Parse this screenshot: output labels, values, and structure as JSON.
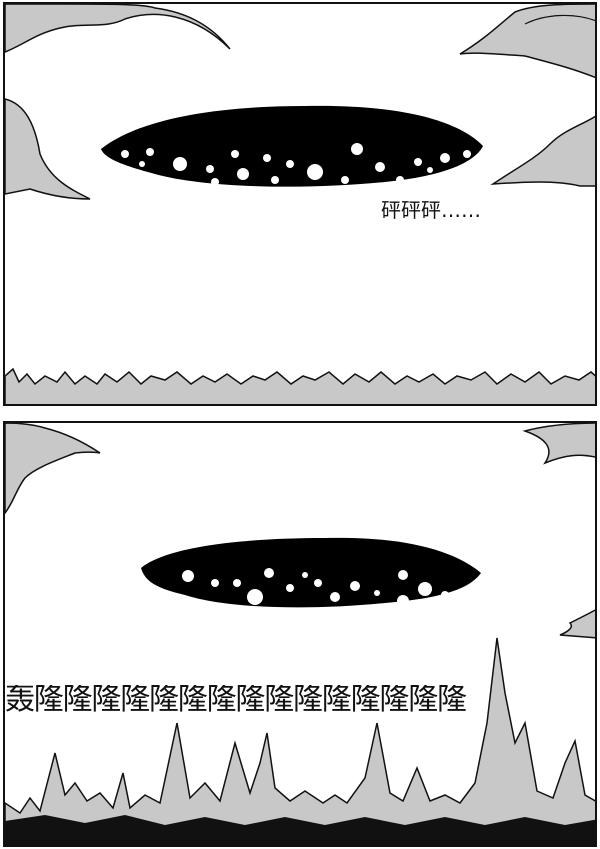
{
  "panel1": {
    "sound_effect": "砰砰砰……"
  },
  "panel2": {
    "sound_effect": "轰隆隆隆隆隆隆隆隆隆隆隆隆隆隆隆"
  },
  "colors": {
    "ink": "#111111",
    "cloud_shade": "#c8c8c8",
    "ship": "#000000"
  }
}
